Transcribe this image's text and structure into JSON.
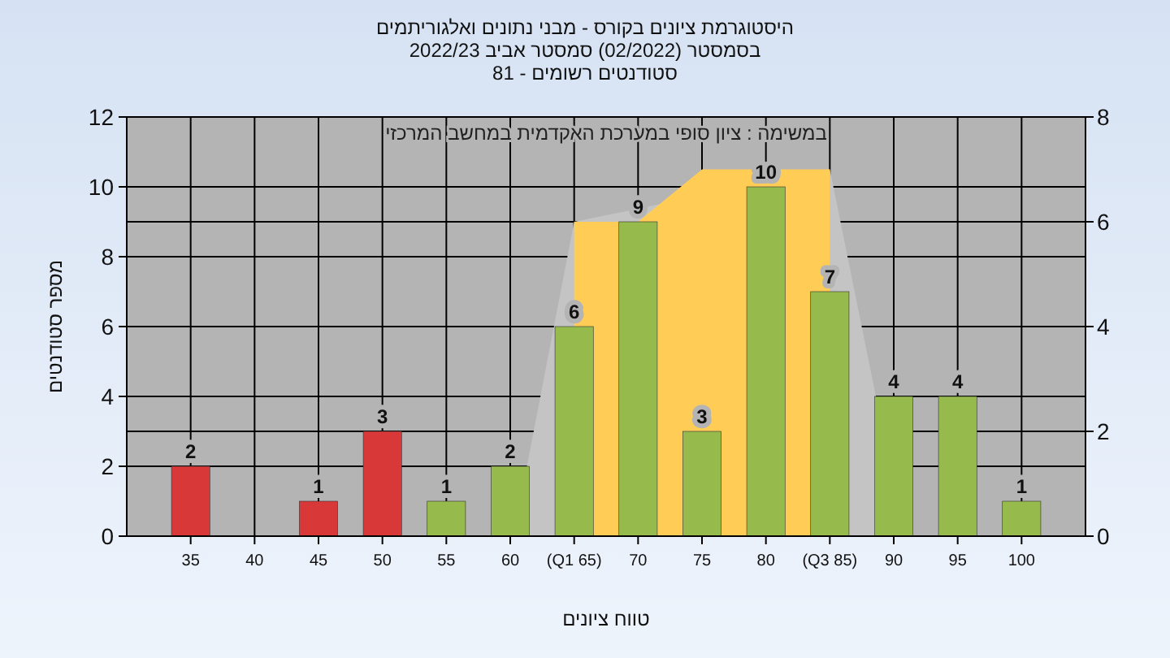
{
  "chart_data": {
    "type": "bar",
    "title": "היסטוגרמת ציונים בקורס - מבני נתונים ואלגוריתמים",
    "subtitle": "בסמסטר  (02/2022)  סמסטר אביב 2022/23\nסטודנטים רשומים - 81",
    "xlabel": "טווח ציונים",
    "ylabel": "מספר סטודנטים",
    "annotations": [
      "במשימה : ציון סופי במערכת האקדמית במחשב המרכזי"
    ],
    "xlim": [
      30,
      105
    ],
    "xticks": [
      35,
      40,
      45,
      50,
      55,
      60,
      {
        "value": 65,
        "label": "(Q1 65)"
      },
      70,
      75,
      80,
      {
        "value": 85,
        "label": "(Q3 85)"
      },
      90,
      95,
      100
    ],
    "ylim": [
      0,
      12
    ],
    "yticks": [
      0,
      2,
      4,
      6,
      8,
      10,
      12
    ],
    "y2lim": [
      0,
      8
    ],
    "y2ticks": [
      0,
      2,
      4,
      6,
      8
    ],
    "grid": true,
    "series": [
      {
        "type": "area",
        "axis": "y2",
        "color": "#c4c4c4",
        "x": [
          61.3,
          65,
          85,
          88.6
        ],
        "values": [
          1.33,
          6,
          7,
          2.67
        ]
      },
      {
        "type": "area",
        "axis": "y2",
        "color": "#ffcc55",
        "x": [
          65,
          70,
          75,
          85
        ],
        "values": [
          6,
          6,
          7,
          7
        ]
      },
      {
        "x": [
          35,
          40,
          45,
          50,
          55,
          60,
          65,
          70,
          75,
          80,
          85,
          90,
          95,
          100
        ],
        "values": [
          2,
          0,
          1,
          3,
          1,
          2,
          6,
          9,
          3,
          10,
          7,
          4,
          4,
          1
        ],
        "value_labels": [
          "2",
          null,
          "1",
          "3",
          "1",
          "2",
          "6",
          "9",
          "3",
          "10",
          "7",
          "4",
          "4",
          "1"
        ],
        "colors": [
          "#d93838",
          "#d93838",
          "#d93838",
          "#d93838",
          "#96ba4c",
          "#96ba4c",
          "#96ba4c",
          "#96ba4c",
          "#96ba4c",
          "#96ba4c",
          "#96ba4c",
          "#96ba4c",
          "#96ba4c",
          "#96ba4c"
        ]
      }
    ]
  }
}
